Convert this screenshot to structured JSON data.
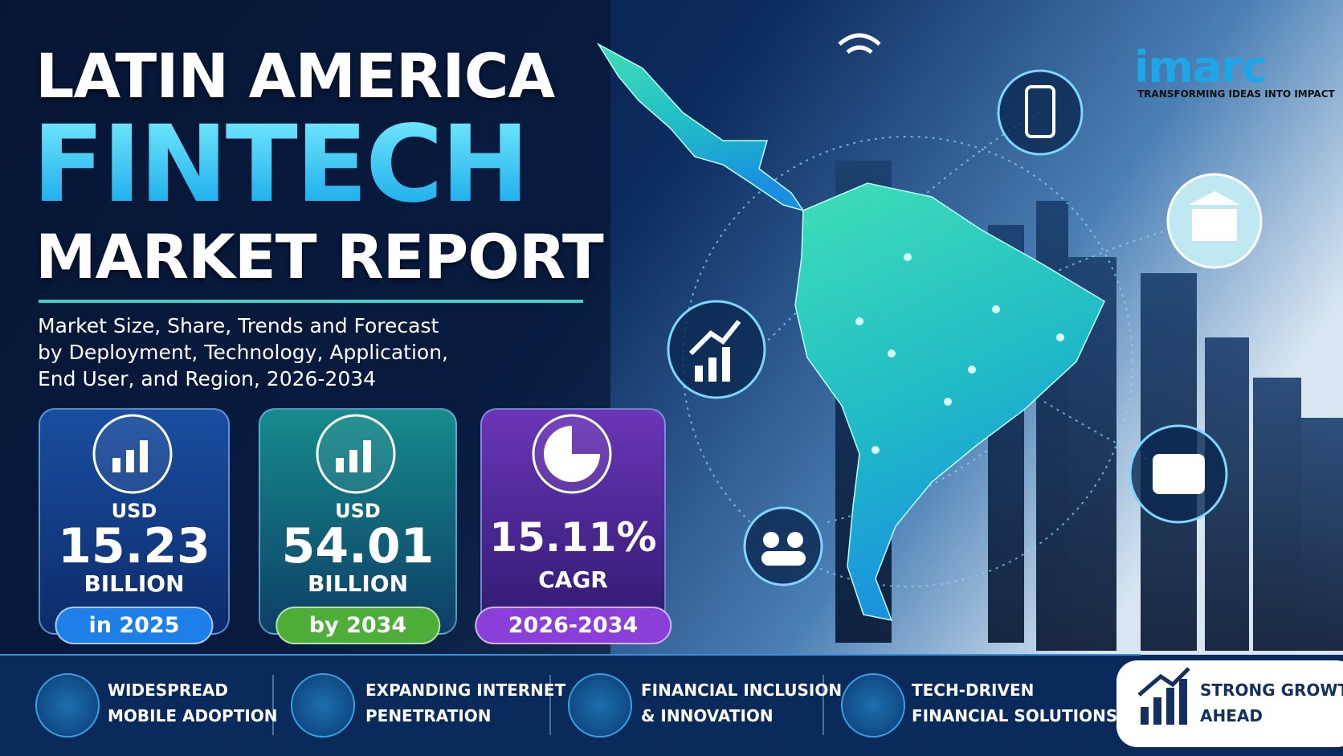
{
  "header": {
    "title_lines": [
      "LATIN AMERICA",
      "FINTECH",
      "MARKET REPORT"
    ],
    "subtitle_lines": [
      "Market Size, Share, Trends and Forecast",
      "by Deployment, Technology, Application,",
      "End User, and Region, 2026-2034"
    ]
  },
  "logo": {
    "name": "imarc",
    "tagline": "TRANSFORMING IDEAS INTO IMPACT"
  },
  "stats": [
    {
      "prefix": "USD",
      "value": "15.23",
      "unit": "BILLION",
      "badge": "in 2025"
    },
    {
      "prefix": "USD",
      "value": "54.01",
      "unit": "BILLION",
      "badge": "by 2034"
    },
    {
      "value": "15.11%",
      "unit": "CAGR",
      "badge": "2026-2034"
    }
  ],
  "highlights": [
    {
      "lines": [
        "WIDESPREAD",
        "MOBILE ADOPTION"
      ]
    },
    {
      "lines": [
        "EXPANDING INTERNET",
        "PENETRATION"
      ]
    },
    {
      "lines": [
        "FINANCIAL INCLUSION",
        "& INNOVATION"
      ]
    },
    {
      "lines": [
        "TECH-DRIVEN",
        "FINANCIAL SOLUTIONS"
      ]
    }
  ],
  "callout": {
    "lines": [
      "STRONG GROWTH",
      "AHEAD"
    ]
  }
}
